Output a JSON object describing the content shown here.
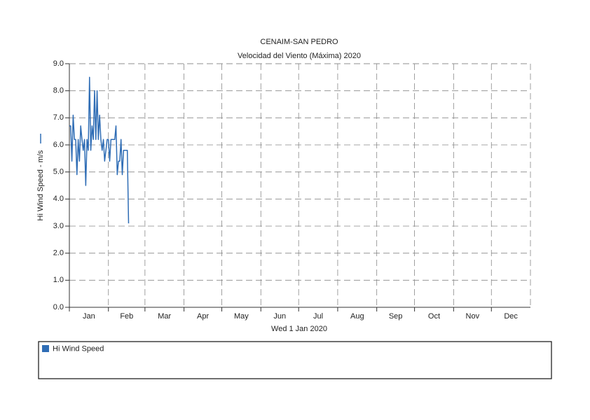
{
  "chart_data": {
    "type": "line",
    "title": "CENAIM-SAN PEDRO",
    "subtitle": "Velocidad del Viento (Máxima) 2020",
    "x_label": "Wed 1 Jan 2020",
    "y_label": "Hi Wind Speed - m/s",
    "x": [
      0,
      1,
      2,
      3,
      4,
      5,
      6,
      7,
      8,
      9,
      10,
      11,
      12,
      13,
      14,
      15,
      16,
      17,
      18,
      19,
      20,
      21,
      22,
      23,
      24,
      25,
      26,
      27,
      28,
      29,
      30,
      31,
      32,
      33,
      34,
      35,
      36,
      37,
      38,
      39,
      40,
      41,
      42,
      43,
      44,
      45,
      46,
      47
    ],
    "series": [
      {
        "name": "Hi Wind Speed",
        "color": "#2f6db5",
        "values": [
          6.7,
          6.7,
          5.4,
          7.1,
          6.2,
          6.2,
          4.9,
          6.2,
          5.4,
          6.7,
          6.2,
          5.8,
          6.2,
          4.5,
          6.2,
          5.8,
          8.5,
          5.8,
          6.7,
          6.2,
          8.0,
          6.2,
          8.0,
          6.2,
          7.1,
          6.2,
          5.8,
          6.2,
          5.4,
          5.8,
          6.2,
          6.2,
          5.4,
          6.2,
          6.2,
          6.2,
          6.2,
          6.7,
          4.9,
          5.4,
          5.4,
          6.2,
          4.9,
          5.8,
          5.8,
          5.8,
          5.8,
          3.1
        ]
      }
    ],
    "xlim": [
      0,
      366
    ],
    "xticks": [
      {
        "value": 0,
        "label": "Jan"
      },
      {
        "value": 31,
        "label": "Feb"
      },
      {
        "value": 60,
        "label": "Mar"
      },
      {
        "value": 91,
        "label": "Apr"
      },
      {
        "value": 121,
        "label": "May"
      },
      {
        "value": 152,
        "label": "Jun"
      },
      {
        "value": 182,
        "label": "Jul"
      },
      {
        "value": 213,
        "label": "Aug"
      },
      {
        "value": 244,
        "label": "Sep"
      },
      {
        "value": 274,
        "label": "Oct"
      },
      {
        "value": 305,
        "label": "Nov"
      },
      {
        "value": 335,
        "label": "Dec"
      }
    ],
    "ylim": [
      0,
      9
    ],
    "yticks": [
      {
        "value": 0,
        "label": "0.0"
      },
      {
        "value": 1,
        "label": "1.0"
      },
      {
        "value": 2,
        "label": "2.0"
      },
      {
        "value": 3,
        "label": "3.0"
      },
      {
        "value": 4,
        "label": "4.0"
      },
      {
        "value": 5,
        "label": "5.0"
      },
      {
        "value": 6,
        "label": "6.0"
      },
      {
        "value": 7,
        "label": "7.0"
      },
      {
        "value": 8,
        "label": "8.0"
      },
      {
        "value": 9,
        "label": "9.0"
      }
    ],
    "grid": true
  }
}
